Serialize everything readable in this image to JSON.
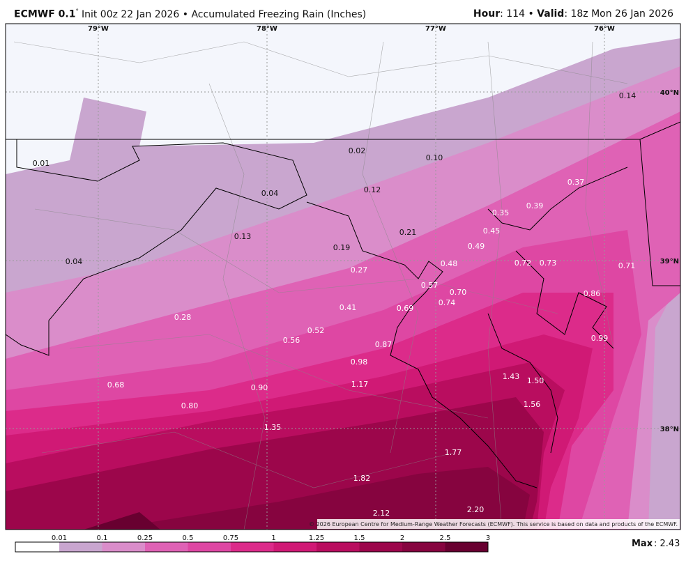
{
  "header": {
    "model": "ECMWF 0.1",
    "degree": "°",
    "title": "Init 00z 22 Jan 2026 • Accumulated Freezing Rain (Inches)",
    "hour_label": "Hour",
    "hour_value": ": 114 •",
    "valid_label": "Valid",
    "valid_value": ": 18z Mon 26 Jan 2026"
  },
  "map": {
    "longitudes": [
      "79°W",
      "78°W",
      "77°W",
      "76°W"
    ],
    "latitudes": [
      "40°N",
      "39°N",
      "38°N"
    ],
    "value_labels": [
      "0.14",
      "0.02",
      "0.10",
      "0.01",
      "0.37",
      "0.12",
      "0.04",
      "0.35",
      "0.39",
      "0.45",
      "0.21",
      "0.13",
      "0.49",
      "0.19",
      "0.04",
      "0.48",
      "0.72",
      "0.73",
      "0.71",
      "0.27",
      "0.57",
      "0.70",
      "0.86",
      "0.74",
      "0.41",
      "0.69",
      "0.28",
      "0.52",
      "0.56",
      "0.99",
      "0.87",
      "0.98",
      "1.43",
      "1.50",
      "0.68",
      "1.17",
      "0.90",
      "1.56",
      "0.80",
      "1.35",
      "1.77",
      "1.82",
      "2.20",
      "2.12"
    ],
    "copyright": "© 2026 European Centre for Medium-Range Weather Forecasts (ECMWF). This service is based on data and products of the ECMWF."
  },
  "colorbar": {
    "colors": [
      "#ffffff",
      "#c9a6cf",
      "#da8dca",
      "#df62b5",
      "#de47a3",
      "#dc2b8a",
      "#d01975",
      "#b90d5f",
      "#9c064b",
      "#86043f",
      "#680030"
    ],
    "ticks": [
      "0.01",
      "0.1",
      "0.25",
      "0.5",
      "0.75",
      "1",
      "1.25",
      "1.5",
      "2",
      "2.5",
      "3"
    ]
  },
  "footer": {
    "max_label": "Max",
    "max_value": ": 2.43"
  }
}
